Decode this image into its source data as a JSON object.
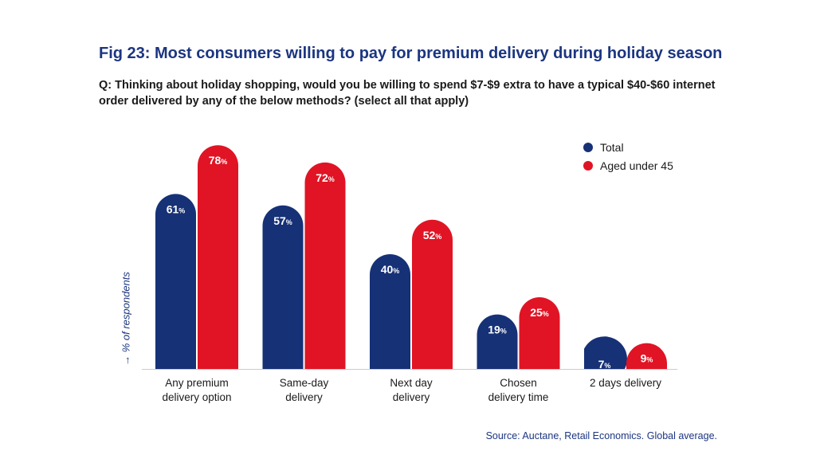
{
  "title": "Fig 23: Most consumers willing to pay for premium delivery during holiday season",
  "question": "Q: Thinking about holiday shopping, would you be willing to spend $7-$9 extra to have a typical $40-$60 internet order delivered by any of the below methods? (select all that apply)",
  "source": "Source: Auctane, Retail Economics. Global average.",
  "colors": {
    "total": "#163176",
    "aged_under_45": "#e01424"
  },
  "chart_data": {
    "type": "bar",
    "title": "Fig 23: Most consumers willing to pay for premium delivery during holiday season",
    "xlabel": "",
    "ylabel": "→ % of respondents",
    "ylim": [
      0,
      80
    ],
    "grid": false,
    "legend": "top-right",
    "unit": "%",
    "categories": [
      [
        "Any premium",
        "delivery option"
      ],
      [
        "Same-day",
        "delivery"
      ],
      [
        "Next day",
        "delivery"
      ],
      [
        "Chosen",
        "delivery time"
      ],
      [
        "2 days delivery"
      ]
    ],
    "series": [
      {
        "name": "Total",
        "color": "#163176",
        "values": [
          61,
          57,
          40,
          19,
          7
        ]
      },
      {
        "name": "Aged under 45",
        "color": "#e01424",
        "values": [
          78,
          72,
          52,
          25,
          9
        ]
      }
    ]
  }
}
